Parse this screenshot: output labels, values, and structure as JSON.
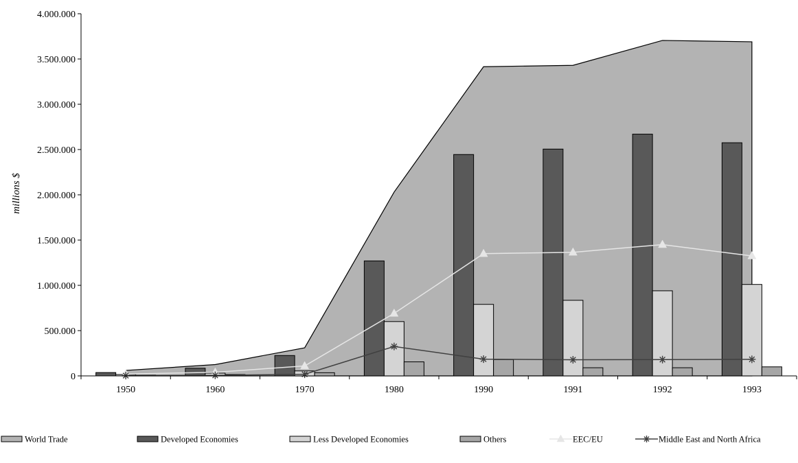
{
  "chart_data": {
    "type": "bar",
    "categories": [
      "1950",
      "1960",
      "1970",
      "1980",
      "1990",
      "1991",
      "1992",
      "1993"
    ],
    "ylabel": "millions $",
    "xlabel": "",
    "ylim": [
      0,
      4000000
    ],
    "y_ticks": [
      {
        "value": 0,
        "label": "0"
      },
      {
        "value": 500000,
        "label": "500.000"
      },
      {
        "value": 1000000,
        "label": "1.000.000"
      },
      {
        "value": 1500000,
        "label": "1.500.000"
      },
      {
        "value": 2000000,
        "label": "2.000.000"
      },
      {
        "value": 2500000,
        "label": "2.500.000"
      },
      {
        "value": 3000000,
        "label": "3.000.000"
      },
      {
        "value": 3500000,
        "label": "3.500.000"
      },
      {
        "value": 4000000,
        "label": "4.000.000"
      }
    ],
    "grid": false,
    "legend_position": "bottom",
    "series": [
      {
        "name": "World Trade",
        "kind": "area",
        "color": "#b3b3b3",
        "values": [
          60000,
          125000,
          310000,
          2030000,
          3415000,
          3430000,
          3705000,
          3690000
        ]
      },
      {
        "name": "Developed Economies",
        "kind": "bar",
        "color": "#595959",
        "values": [
          37000,
          85000,
          225000,
          1270000,
          2445000,
          2505000,
          2670000,
          2575000
        ]
      },
      {
        "name": "Less Developed Economies",
        "kind": "bar",
        "color": "#d4d4d4",
        "values": [
          15000,
          30000,
          55000,
          600000,
          790000,
          835000,
          940000,
          1010000
        ]
      },
      {
        "name": "Others",
        "kind": "bar",
        "color": "#a6a6a6",
        "values": [
          8000,
          15000,
          35000,
          155000,
          180000,
          90000,
          90000,
          100000
        ]
      },
      {
        "name": "EEC/EU",
        "kind": "line",
        "color": "#e6e6e6",
        "marker": "triangle",
        "values": [
          20000,
          40000,
          110000,
          690000,
          1350000,
          1365000,
          1450000,
          1325000
        ]
      },
      {
        "name": "Middle East and North Africa",
        "kind": "line",
        "color": "#404040",
        "marker": "star",
        "values": [
          3000,
          6000,
          18000,
          325000,
          185000,
          178000,
          180000,
          183000
        ]
      }
    ]
  }
}
